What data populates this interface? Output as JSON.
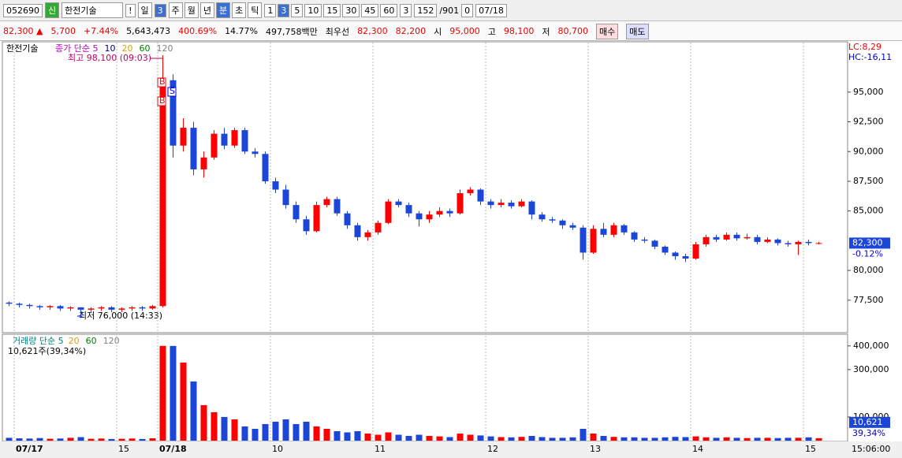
{
  "toolbar": {
    "code": "052690",
    "badge": "신",
    "name": "한전기술",
    "alert": "!",
    "period": "일",
    "period_n": "3",
    "tabs": [
      "주",
      "월",
      "년",
      "분",
      "초",
      "틱"
    ],
    "intervals": [
      "1",
      "3",
      "5",
      "10",
      "15",
      "30",
      "45",
      "60"
    ],
    "count": "3",
    "range_a": "152",
    "range_b": "/901",
    "zero": "0",
    "date": "07/18"
  },
  "quote": {
    "price": "82,300 ▲",
    "change": "5,700",
    "rate": "+7.44%",
    "volume": "5,643,473",
    "vol_rate": "400.69%",
    "turnover": "14.77%",
    "amount": "497,758백만",
    "best": "최우선",
    "ask": "82,300",
    "bid": "82,200",
    "open_l": "시",
    "open": "95,000",
    "high_l": "고",
    "high": "98,100",
    "low_l": "저",
    "low": "80,700",
    "buy": "매수",
    "sell": "매도"
  },
  "chart_data": {
    "type": "candlestick",
    "title": "한전기술",
    "indicators": [
      {
        "name": "종가 단순 5",
        "color": "#c000c0"
      },
      {
        "name": "10",
        "color": "#000080"
      },
      {
        "name": "20",
        "color": "#e0a000"
      },
      {
        "name": "60",
        "color": "#008000"
      },
      {
        "name": "120",
        "color": "#808080"
      }
    ],
    "volume_title": "거래량 단순 5",
    "volume_indicators": [
      {
        "name": "20",
        "color": "#e0a000"
      },
      {
        "name": "60",
        "color": "#008000"
      },
      {
        "name": "120",
        "color": "#808080"
      }
    ],
    "volume_note": "10,621주(39,34%)",
    "categories": [
      null,
      "07/17",
      null,
      null,
      null,
      null,
      null,
      null,
      null,
      null,
      null,
      "15",
      null,
      null,
      null,
      "07/18",
      null,
      null,
      null,
      null,
      null,
      null,
      null,
      null,
      null,
      null,
      "10",
      null,
      null,
      null,
      null,
      null,
      null,
      null,
      null,
      null,
      "11",
      null,
      null,
      null,
      null,
      null,
      null,
      null,
      null,
      null,
      null,
      "12",
      null,
      null,
      null,
      null,
      null,
      null,
      null,
      null,
      null,
      "13",
      null,
      null,
      null,
      null,
      null,
      null,
      null,
      null,
      null,
      "14",
      null,
      null,
      null,
      null,
      null,
      null,
      null,
      null,
      null,
      null,
      "15",
      null
    ],
    "open": [
      77300,
      77200,
      77100,
      77000,
      76900,
      77000,
      76800,
      76900,
      76700,
      76800,
      76900,
      76700,
      76800,
      76900,
      76800,
      77000,
      96000,
      90500,
      92000,
      88500,
      89500,
      91500,
      90500,
      91800,
      90000,
      89800,
      87500,
      86800,
      85500,
      84300,
      83300,
      85500,
      86000,
      84800,
      83800,
      82800,
      83200,
      84000,
      85800,
      85500,
      84800,
      84300,
      84700,
      85000,
      84800,
      86500,
      86800,
      85800,
      85500,
      85700,
      85400,
      85800,
      84700,
      84300,
      84200,
      83800,
      83600,
      81500,
      83500,
      83000,
      83800,
      83200,
      82600,
      82500,
      82000,
      81500,
      81200,
      81000,
      82200,
      82800,
      82600,
      83000,
      82700,
      82800,
      82400,
      82600,
      82300,
      82200,
      82400,
      82300
    ],
    "close": [
      77200,
      77100,
      77000,
      76900,
      77000,
      76800,
      76900,
      76700,
      76800,
      76900,
      76700,
      76800,
      76900,
      76800,
      77000,
      96000,
      90500,
      92000,
      88500,
      89500,
      91500,
      90500,
      91800,
      90000,
      89800,
      87500,
      86800,
      85500,
      84300,
      83300,
      85500,
      86000,
      84800,
      83800,
      82800,
      83200,
      84000,
      85800,
      85500,
      84800,
      84300,
      84700,
      85000,
      84800,
      86500,
      86800,
      85800,
      85500,
      85700,
      85400,
      85800,
      84700,
      84300,
      84200,
      83800,
      83600,
      81500,
      83500,
      83000,
      83800,
      83200,
      82600,
      82500,
      82000,
      81500,
      81200,
      81000,
      82200,
      82800,
      82600,
      83000,
      82700,
      82800,
      82400,
      82600,
      82300,
      82200,
      82400,
      82300,
      82300
    ],
    "high": [
      77400,
      77300,
      77200,
      77100,
      77100,
      77100,
      77000,
      76900,
      76900,
      77000,
      77000,
      76900,
      77000,
      77000,
      77100,
      98100,
      96500,
      92800,
      92500,
      90000,
      91800,
      92000,
      92000,
      92000,
      90300,
      90000,
      87800,
      87200,
      85800,
      84600,
      85800,
      86200,
      86200,
      85000,
      84000,
      83400,
      84200,
      86000,
      86000,
      85700,
      85000,
      85000,
      85300,
      85200,
      86800,
      87000,
      86900,
      86000,
      86000,
      85900,
      86000,
      85900,
      84900,
      84500,
      84300,
      84000,
      83800,
      83800,
      84000,
      84000,
      83900,
      83300,
      82800,
      82600,
      82100,
      81600,
      81400,
      82400,
      83000,
      83000,
      83200,
      83200,
      83100,
      83000,
      82800,
      82700,
      82500,
      82500,
      82600,
      82400
    ],
    "low": [
      77000,
      76900,
      76800,
      76700,
      76700,
      76600,
      76600,
      76000,
      76500,
      76600,
      76500,
      76500,
      76600,
      76600,
      76700,
      76900,
      89500,
      90000,
      88000,
      87800,
      89300,
      90200,
      90300,
      89800,
      89500,
      87300,
      86500,
      85200,
      84000,
      83000,
      83200,
      85300,
      84600,
      83500,
      82500,
      82500,
      83000,
      83900,
      85300,
      84500,
      83700,
      84000,
      84500,
      84500,
      84700,
      86300,
      85500,
      85200,
      85300,
      85200,
      85300,
      84300,
      84100,
      84000,
      83500,
      83400,
      80900,
      81400,
      82800,
      82800,
      83000,
      82400,
      82300,
      81800,
      81300,
      80900,
      80700,
      80900,
      82000,
      82400,
      82500,
      82500,
      82600,
      82200,
      82300,
      82100,
      82000,
      81300,
      82100,
      82200
    ],
    "volume": [
      12000,
      10000,
      9000,
      11000,
      8000,
      9000,
      12000,
      15000,
      8000,
      9000,
      7000,
      8000,
      9000,
      7000,
      10000,
      400000,
      400000,
      330000,
      250000,
      150000,
      120000,
      100000,
      90000,
      60000,
      50000,
      70000,
      80000,
      90000,
      70000,
      80000,
      60000,
      50000,
      40000,
      35000,
      40000,
      30000,
      25000,
      35000,
      25000,
      20000,
      25000,
      20000,
      18000,
      15000,
      30000,
      25000,
      22000,
      18000,
      15000,
      14000,
      16000,
      20000,
      15000,
      12000,
      12000,
      14000,
      50000,
      30000,
      20000,
      16000,
      14000,
      14000,
      12000,
      12000,
      14000,
      16000,
      15000,
      18000,
      14000,
      12000,
      14000,
      12000,
      11000,
      12000,
      12000,
      11000,
      12000,
      12000,
      14000,
      10621
    ],
    "ylim": [
      74900,
      99100
    ],
    "yticks": [
      {
        "value": 77500,
        "label": "77,500"
      },
      {
        "value": 80000,
        "label": "80,000"
      },
      {
        "value": 85000,
        "label": "85,000"
      },
      {
        "value": 87500,
        "label": "87,500"
      },
      {
        "value": 90000,
        "label": "90,000"
      },
      {
        "value": 92500,
        "label": "92,500"
      },
      {
        "value": 95000,
        "label": "95,000"
      }
    ],
    "volume_ylim": [
      0,
      446000
    ],
    "volume_yticks": [
      {
        "value": 100000,
        "label": "100,000"
      },
      {
        "value": 300000,
        "label": "300,000"
      },
      {
        "value": 400000,
        "label": "400,000"
      }
    ],
    "up_color": "#ff0000",
    "down_color": "#1c46d8",
    "high_note": "최고 98,100 (09:03)",
    "low_note": "최저 76,000 (14:33)",
    "signals": [
      "B",
      "S",
      "B"
    ],
    "lc": "LC:8,29",
    "hc": "HC:-16,11",
    "last": "82,300",
    "last_rate": "-0.12%",
    "last_volume": "10,621",
    "last_volume_rate": "39,34%",
    "clock": "15:06:00"
  }
}
